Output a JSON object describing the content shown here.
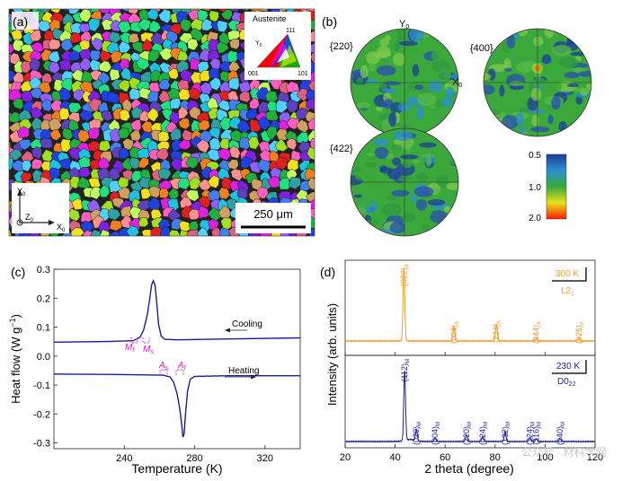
{
  "panel_labels": {
    "a": "(a)",
    "b": "(b)",
    "c": "(c)",
    "d": "(d)"
  },
  "panel_a": {
    "ipf_title": "Austenite",
    "ipf_axis": "Y",
    "ipf_axis_sub": "0",
    "ipf_corner_111": "111",
    "ipf_corner_001": "001",
    "ipf_corner_101": "101",
    "axis_y": "Y",
    "axis_y_sub": "0",
    "axis_z": "Z",
    "axis_z_sub": "0",
    "axis_x": "X",
    "axis_x_sub": "0",
    "scale_bar": "250 μm"
  },
  "panel_b": {
    "pf_220": "{220}",
    "pf_400": "{400}",
    "pf_422": "{422}",
    "axis_y": "Y",
    "axis_y_sub": "0",
    "axis_x": "X",
    "axis_x_sub": "0",
    "colorbar_ticks": [
      "0.5",
      "1.0",
      "2.0"
    ],
    "colors": {
      "low": "#1c3d9a",
      "mid": "#3aa83a",
      "high": "#ff1a00"
    }
  },
  "chart_data": [
    {
      "type": "line",
      "panel": "(c)",
      "xlabel": "Temperature (K)",
      "ylabel": "Heat flow (W g",
      "ylabel_sup": "−1",
      "ylabel_end": ")",
      "xlim": [
        200,
        340
      ],
      "ylim": [
        -0.32,
        0.3
      ],
      "xticks": [
        240,
        280,
        320
      ],
      "yticks": [
        0.3,
        0.2,
        0.1,
        0.0,
        -0.1,
        -0.2,
        -0.3
      ],
      "ytick_labels": [
        "0.3",
        "0.2",
        "0.1",
        "0.0",
        "-0.1",
        "-0.2",
        "-0.3"
      ],
      "series": [
        {
          "name": "Cooling",
          "color": "#1c1c9a",
          "x": [
            200,
            230,
            245,
            249,
            251,
            253,
            254.5,
            255.5,
            256.5,
            257.5,
            258.5,
            259.5,
            261,
            263,
            270,
            300,
            340
          ],
          "y": [
            0.048,
            0.05,
            0.053,
            0.065,
            0.09,
            0.14,
            0.2,
            0.245,
            0.26,
            0.245,
            0.18,
            0.11,
            0.068,
            0.058,
            0.056,
            0.059,
            0.063
          ]
        },
        {
          "name": "Heating",
          "color": "#1c1c9a",
          "x": [
            200,
            240,
            262,
            266,
            268,
            270,
            271.5,
            272.5,
            273.3,
            274,
            274.8,
            276,
            277.5,
            280,
            300,
            340
          ],
          "y": [
            -0.062,
            -0.064,
            -0.066,
            -0.072,
            -0.09,
            -0.13,
            -0.18,
            -0.23,
            -0.28,
            -0.27,
            -0.2,
            -0.12,
            -0.08,
            -0.07,
            -0.068,
            -0.068
          ]
        }
      ],
      "annotations": {
        "cooling": "Cooling",
        "heating": "Heating",
        "mf": "M",
        "mf_sub": "f",
        "ms": "M",
        "ms_sub": "s",
        "as": "A",
        "as_sub": "s",
        "af": "A",
        "af_sub": "f"
      }
    },
    {
      "type": "line",
      "panel": "(d)",
      "xlabel": "2 theta (degree)",
      "ylabel": "Intensity (arb. units)",
      "xlim": [
        20,
        120
      ],
      "xticks": [
        20,
        40,
        60,
        80,
        100,
        120
      ],
      "series": [
        {
          "name": "300 K",
          "structure": "L2",
          "structure_sub": "1",
          "color": "#f09a2a",
          "peaks": [
            {
              "x": 43.5,
              "h": 1.0,
              "label": "(022)",
              "sub": "A"
            },
            {
              "x": 63.5,
              "h": 0.2,
              "label": "(004)",
              "sub": "A"
            },
            {
              "x": 80.5,
              "h": 0.23,
              "label": "(224)",
              "sub": "A"
            },
            {
              "x": 96.5,
              "h": 0.04,
              "label": "(044)",
              "sub": "A"
            },
            {
              "x": 113.5,
              "h": 0.04,
              "label": "(026)",
              "sub": "A"
            }
          ]
        },
        {
          "name": "230 K",
          "structure": "D0",
          "structure_sub": "22",
          "color": "#1c1c9a",
          "peaks": [
            {
              "x": 43.8,
              "h": 1.0,
              "label": "(112)",
              "sub": "M"
            },
            {
              "x": 48.5,
              "h": 0.16,
              "label": "(020)",
              "sub": "M"
            },
            {
              "x": 56.0,
              "h": 0.05,
              "label": "(004)",
              "sub": "M"
            },
            {
              "x": 68.5,
              "h": 0.1,
              "label": "(220)",
              "sub": "M"
            },
            {
              "x": 75.0,
              "h": 0.07,
              "label": "(024)",
              "sub": "M"
            },
            {
              "x": 84.0,
              "h": 0.14,
              "label": "(132)",
              "sub": "M"
            },
            {
              "x": 94.0,
              "h": 0.06,
              "label": "(224)",
              "sub": "M"
            },
            {
              "x": 96.5,
              "h": 0.04,
              "label": "(116)",
              "sub": "M"
            },
            {
              "x": 106.0,
              "h": 0.04,
              "label": "(040)",
              "sub": "M"
            }
          ]
        }
      ],
      "watermark": "公众号 · 材料学网"
    }
  ]
}
